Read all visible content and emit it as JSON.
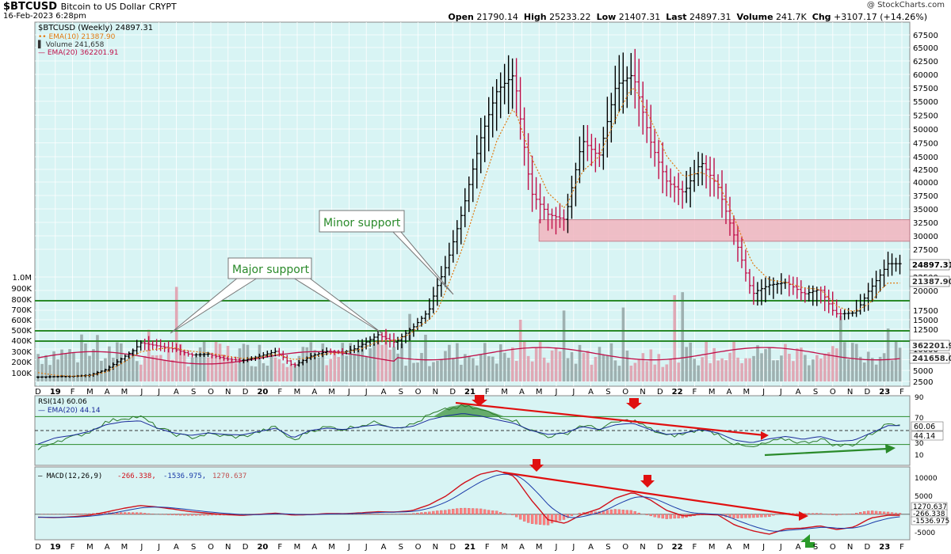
{
  "header": {
    "symbol": "$BTCUSD",
    "name": "Bitcoin to US Dollar",
    "exchange": "CRYPT",
    "date": "16-Feb-2023 6:28pm",
    "credit": "@ StockCharts.com",
    "open_label": "Open",
    "open": "21790.14",
    "high_label": "High",
    "high": "25233.22",
    "low_label": "Low",
    "low": "21407.31",
    "last_label": "Last",
    "last": "24897.31",
    "volume_label": "Volume",
    "volume": "241.7K",
    "chg_label": "Chg",
    "chg": "+3107.17 (+14.26%)"
  },
  "legend": {
    "price": "$BTCUSD (Weekly) 24897.31",
    "ema10": "EMA(10) 21387.90",
    "volume": "Volume 241,658",
    "ema20": "EMA(20) 362201.91"
  },
  "colors": {
    "bg": "#d8f4f4",
    "up": "#000000",
    "down": "#c0104a",
    "ema10": "#e07a10",
    "ema20vol": "#c0104a",
    "green_line": "#2a8a2a",
    "zone": "#f2b5bf",
    "rsi": "#2a7a2a",
    "rsi_ema": "#1a2a9a",
    "macd": "#d0101a",
    "signal": "#1a3aa8",
    "hist": "#ff8080",
    "arrow_red": "#e01010",
    "arrow_green": "#2a9a2a",
    "trend_red": "#e01010"
  },
  "annotations": {
    "minor_support": "Minor support",
    "major_support": "Major support"
  },
  "price_axis": [
    "67500",
    "65000",
    "62500",
    "60000",
    "57500",
    "55000",
    "52500",
    "50000",
    "47500",
    "45000",
    "42500",
    "40000",
    "37500",
    "35000",
    "32500",
    "30000",
    "27500",
    "22500",
    "20000",
    "17500",
    "15000",
    "12500",
    "10000",
    "7500",
    "5000",
    "2500"
  ],
  "volume_axis": [
    "1.0M",
    "900K",
    "800K",
    "700K",
    "600K",
    "500K",
    "400K",
    "300K",
    "200K",
    "100K"
  ],
  "price_badges": {
    "last": "24897.31",
    "ema10": "21387.90",
    "ema20": "362201.9",
    "vol": "241658.0"
  },
  "x_labels": [
    "D",
    "19",
    "F",
    "M",
    "A",
    "M",
    "J",
    "J",
    "A",
    "S",
    "O",
    "N",
    "D",
    "20",
    "F",
    "M",
    "A",
    "M",
    "J",
    "J",
    "A",
    "S",
    "O",
    "N",
    "D",
    "21",
    "F",
    "M",
    "A",
    "M",
    "J",
    "J",
    "A",
    "S",
    "O",
    "N",
    "D",
    "22",
    "F",
    "M",
    "A",
    "M",
    "J",
    "J",
    "A",
    "S",
    "O",
    "N",
    "D",
    "23",
    "F"
  ],
  "rsi": {
    "legend": "RSI(14) 60.06",
    "ema_legend": "EMA(20) 44.14",
    "axis": [
      "90",
      "70",
      "50",
      "30",
      "10"
    ],
    "badge_rsi": "60.06",
    "badge_ema": "44.14"
  },
  "macd": {
    "legend_label": "MACD(12,26,9)",
    "v1": "-266.338",
    "v2": "-1536.975",
    "v3": "1270.637",
    "axis": [
      "10000",
      "5000",
      "0",
      "-5000"
    ],
    "badge1": "1270.637",
    "badge2": "-266.338",
    "badge3": "-1536.975"
  },
  "chart_data": {
    "type": "line",
    "title": "$BTCUSD Bitcoin to US Dollar (Weekly)",
    "x_period": [
      "2018-12",
      "2019-01",
      "2019-02",
      "2019-03",
      "2019-04",
      "2019-05",
      "2019-06",
      "2019-07",
      "2019-08",
      "2019-09",
      "2019-10",
      "2019-11",
      "2019-12",
      "2020-01",
      "2020-02",
      "2020-03",
      "2020-04",
      "2020-05",
      "2020-06",
      "2020-07",
      "2020-08",
      "2020-09",
      "2020-10",
      "2020-11",
      "2020-12",
      "2021-01",
      "2021-02",
      "2021-03",
      "2021-04",
      "2021-05",
      "2021-06",
      "2021-07",
      "2021-08",
      "2021-09",
      "2021-10",
      "2021-11",
      "2021-12",
      "2022-01",
      "2022-02",
      "2022-03",
      "2022-04",
      "2022-05",
      "2022-06",
      "2022-07",
      "2022-08",
      "2022-09",
      "2022-10",
      "2022-11",
      "2022-12",
      "2023-01",
      "2023-02"
    ],
    "series": [
      {
        "name": "$BTCUSD",
        "values": [
          3500,
          3600,
          3650,
          3900,
          5200,
          8000,
          10800,
          10400,
          10000,
          8600,
          8800,
          7700,
          7300,
          8300,
          9500,
          6000,
          8300,
          9500,
          9300,
          10500,
          11800,
          10800,
          12700,
          17500,
          24500,
          35000,
          48000,
          57000,
          60000,
          38000,
          34000,
          33000,
          48000,
          45000,
          58000,
          60000,
          48000,
          40000,
          38000,
          44000,
          39000,
          29500,
          19500,
          21000,
          21500,
          19500,
          20200,
          16500,
          16800,
          20500,
          24897.31
        ]
      },
      {
        "name": "EMA(10)",
        "values": [
          4500,
          3900,
          3700,
          3800,
          4600,
          6800,
          9300,
          10000,
          10200,
          9500,
          9100,
          8400,
          7800,
          8000,
          8900,
          7500,
          8000,
          8900,
          9200,
          10000,
          11000,
          11100,
          12000,
          15000,
          20000,
          28000,
          38000,
          48000,
          54000,
          45000,
          38000,
          35000,
          42000,
          45000,
          52000,
          58000,
          52000,
          45000,
          41000,
          42000,
          40000,
          33000,
          25000,
          22000,
          21500,
          20500,
          20200,
          18000,
          17200,
          18500,
          21387.9
        ]
      }
    ],
    "y_range": [
      2500,
      68000
    ],
    "volume": {
      "name": "Volume",
      "range": [
        0,
        1000000
      ]
    },
    "rsi": {
      "name": "RSI(14)",
      "range": [
        0,
        100
      ],
      "levels": [
        70,
        30
      ],
      "values": [
        22,
        35,
        40,
        48,
        62,
        68,
        70,
        55,
        45,
        40,
        45,
        42,
        41,
        48,
        55,
        35,
        50,
        55,
        52,
        58,
        62,
        55,
        58,
        72,
        80,
        85,
        80,
        72,
        65,
        50,
        42,
        45,
        58,
        52,
        62,
        65,
        52,
        42,
        45,
        52,
        45,
        30,
        25,
        33,
        38,
        32,
        38,
        28,
        30,
        45,
        60.06
      ]
    },
    "macd": {
      "name": "MACD(12,26,9)",
      "range": [
        -7000,
        13000
      ],
      "values": [
        -800,
        -900,
        -700,
        -300,
        600,
        1600,
        2400,
        2000,
        1400,
        700,
        300,
        -100,
        -300,
        0,
        300,
        -200,
        -100,
        200,
        150,
        400,
        700,
        600,
        1000,
        2600,
        5000,
        8500,
        11000,
        12000,
        10500,
        4000,
        -1500,
        -2500,
        0,
        1500,
        4500,
        6000,
        4000,
        1000,
        -500,
        0,
        -200,
        -3000,
        -4500,
        -5500,
        -4000,
        -3800,
        -3200,
        -4200,
        -3500,
        -1000,
        -266.338
      ]
    }
  }
}
